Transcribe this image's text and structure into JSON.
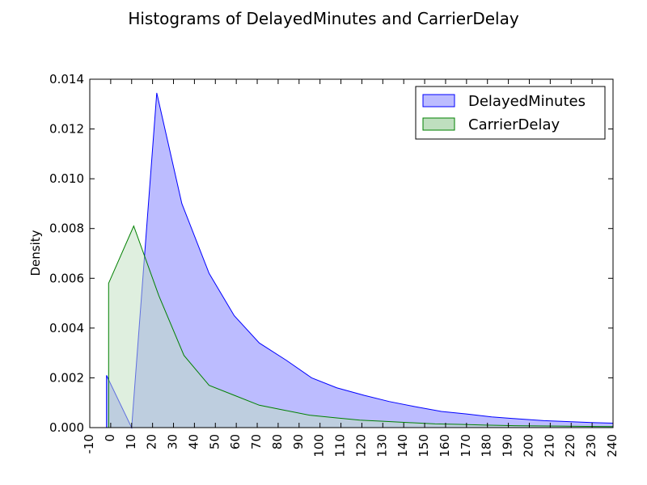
{
  "chart_data": {
    "type": "area",
    "title": "Histograms of DelayedMinutes and CarrierDelay",
    "xlabel": "",
    "ylabel": "Density",
    "xlim": [
      -10,
      240
    ],
    "ylim": [
      0,
      0.014
    ],
    "xticks": [
      -10,
      0,
      10,
      20,
      30,
      40,
      50,
      60,
      70,
      80,
      90,
      100,
      110,
      120,
      130,
      140,
      150,
      160,
      170,
      180,
      190,
      200,
      210,
      220,
      230,
      240
    ],
    "yticks": [
      "0.000",
      "0.002",
      "0.004",
      "0.006",
      "0.008",
      "0.010",
      "0.012",
      "0.014"
    ],
    "legend": "top-right",
    "grid": false,
    "series": [
      {
        "name": "DelayedMinutes",
        "color": "#0000ff",
        "fill": "#bcbcff",
        "x": [
          -2,
          -2,
          10,
          22,
          34,
          47,
          59,
          71,
          84,
          96,
          108,
          121,
          133,
          145,
          158,
          170,
          182,
          195,
          207,
          219,
          231,
          240,
          240
        ],
        "values": [
          0,
          0.0021,
          0.0,
          0.01345,
          0.009,
          0.0062,
          0.0045,
          0.0034,
          0.0027,
          0.002,
          0.0016,
          0.0013,
          0.00105,
          0.00085,
          0.00065,
          0.00055,
          0.00043,
          0.00035,
          0.00028,
          0.00024,
          0.0002,
          0.00018,
          0
        ]
      },
      {
        "name": "CarrierDelay",
        "color": "#008000",
        "fill": "#bfdfbf",
        "x": [
          -1,
          -1,
          11,
          23,
          35,
          47,
          59,
          71,
          83,
          95,
          107,
          119,
          131,
          143,
          155,
          167,
          179,
          191,
          203,
          215,
          227,
          240,
          240
        ],
        "values": [
          0,
          0.0058,
          0.0081,
          0.0053,
          0.0029,
          0.0017,
          0.0013,
          0.0009,
          0.0007,
          0.0005,
          0.0004,
          0.0003,
          0.00025,
          0.0002,
          0.00015,
          0.00013,
          0.0001,
          8e-05,
          7e-05,
          6e-05,
          5e-05,
          4e-05,
          0
        ]
      }
    ]
  }
}
